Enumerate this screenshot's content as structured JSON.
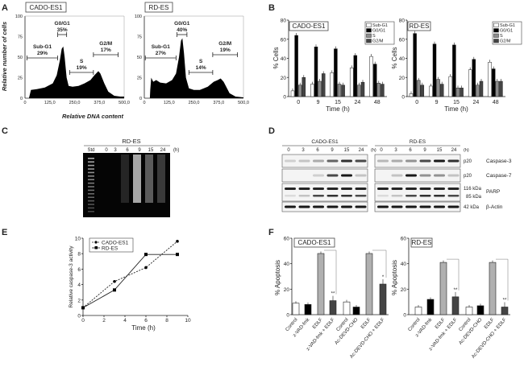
{
  "panels": {
    "A": "A",
    "B": "B",
    "C": "C",
    "D": "D",
    "E": "E",
    "F": "F"
  },
  "chart_data": [
    {
      "panel": "A",
      "type": "area",
      "ylabel": "Relative number of cells",
      "xlabel": "Relative DNA content",
      "xlim": [
        0,
        500
      ],
      "ylim": [
        0,
        100
      ],
      "xticks": [
        "0",
        "125,0",
        "250,0",
        "375,0",
        "500,0"
      ],
      "yticks": [
        "0",
        "25",
        "50",
        "75",
        "100"
      ],
      "plots": [
        {
          "title": "CADO-ES1",
          "x": [
            20,
            30,
            60,
            100,
            140,
            160,
            175,
            185,
            193,
            200,
            210,
            220,
            240,
            270,
            300,
            330,
            350,
            370,
            380,
            400,
            420,
            450,
            480,
            500
          ],
          "y": [
            0,
            10,
            11,
            13,
            18,
            28,
            45,
            60,
            63,
            50,
            25,
            15,
            14,
            15,
            18,
            22,
            28,
            33,
            30,
            18,
            8,
            3,
            2,
            2
          ],
          "gates": [
            {
              "label": "Sub-G1",
              "pct": "29%",
              "from": 10,
              "to": 165
            },
            {
              "label": "G0/G1",
              "pct": "35%",
              "from": 165,
              "to": 210
            },
            {
              "label": "S",
              "pct": "19%",
              "from": 225,
              "to": 345
            },
            {
              "label": "G2/M",
              "pct": "17%",
              "from": 345,
              "to": 470
            }
          ]
        },
        {
          "title": "RD-ES",
          "x": [
            28,
            30,
            35,
            45,
            60,
            80,
            110,
            140,
            160,
            175,
            185,
            192,
            200,
            210,
            225,
            250,
            280,
            320,
            350,
            370,
            385,
            400,
            430,
            460,
            500
          ],
          "y": [
            0,
            10,
            25,
            20,
            22,
            19,
            18,
            22,
            30,
            50,
            70,
            73,
            55,
            25,
            12,
            10,
            10,
            14,
            20,
            22,
            24,
            20,
            6,
            2,
            1
          ],
          "gates": [
            {
              "label": "Sub-G1",
              "pct": "27%",
              "from": 5,
              "to": 160
            },
            {
              "label": "G0/G1",
              "pct": "40%",
              "from": 165,
              "to": 215
            },
            {
              "label": "S",
              "pct": "14%",
              "from": 225,
              "to": 345
            },
            {
              "label": "G2/M",
              "pct": "19%",
              "from": 345,
              "to": 470
            }
          ]
        }
      ]
    },
    {
      "panel": "B",
      "type": "bar",
      "ylabel": "% Cells",
      "xlabel": "Time (h)",
      "ylim": [
        0,
        80
      ],
      "yticks": [
        "0",
        "20",
        "40",
        "60",
        "80"
      ],
      "categories": [
        "0",
        "9",
        "15",
        "24",
        "48"
      ],
      "legend": [
        "Sub-G1",
        "G0/G1",
        "S",
        "G2/M"
      ],
      "legend_placement": "top-right",
      "plots": [
        {
          "title": "CADO-ES1",
          "series": [
            {
              "name": "Sub-G1",
              "values": [
                6,
                13,
                25,
                30,
                42
              ]
            },
            {
              "name": "G0/G1",
              "values": [
                64,
                52,
                50,
                43,
                34
              ]
            },
            {
              "name": "S",
              "values": [
                12,
                16,
                13,
                12,
                14
              ]
            },
            {
              "name": "G2/M",
              "values": [
                20,
                24,
                12,
                15,
                13
              ]
            }
          ]
        },
        {
          "title": "RD-ES",
          "series": [
            {
              "name": "Sub-G1",
              "values": [
                3,
                11,
                21,
                28,
                36
              ]
            },
            {
              "name": "G0/G1",
              "values": [
                66,
                55,
                54,
                39,
                29
              ]
            },
            {
              "name": "S",
              "values": [
                17,
                18,
                9,
                12,
                16
              ]
            },
            {
              "name": "G2/M",
              "values": [
                12,
                13,
                9,
                16,
                16
              ]
            }
          ]
        }
      ]
    },
    {
      "panel": "E",
      "type": "line",
      "ylabel": "Relative caspase-3 activity",
      "xlabel": "Time (h)",
      "xlim": [
        0,
        10
      ],
      "ylim": [
        0,
        10
      ],
      "xticks": [
        "0",
        "2",
        "4",
        "6",
        "8",
        "10"
      ],
      "yticks": [
        "0",
        "2",
        "4",
        "6",
        "8",
        "10"
      ],
      "legend_placement": "top-left",
      "series": [
        {
          "name": "CADO-ES1",
          "x": [
            0,
            3,
            6,
            9
          ],
          "y": [
            1,
            4.4,
            6.2,
            9.6
          ]
        },
        {
          "name": "RD-ES",
          "x": [
            0,
            3,
            6,
            9
          ],
          "y": [
            1,
            3.3,
            7.9,
            7.9
          ]
        }
      ]
    },
    {
      "panel": "F",
      "type": "bar",
      "ylabel": "% Apoptosis",
      "ylim": [
        0,
        60
      ],
      "yticks": [
        "0",
        "20",
        "40",
        "60"
      ],
      "categories": [
        "Control",
        "z-VAD-fmk",
        "EDLF",
        "z-VAD-fmk + EDLF",
        "Control",
        "Ac-DEVD-CHO",
        "EDLF",
        "Ac-DEVD-CHO + EDLF"
      ],
      "plots": [
        {
          "title": "CADO-ES1",
          "values": [
            9,
            8,
            48,
            11,
            10,
            6,
            48,
            24
          ],
          "significance": [
            "",
            "",
            "",
            "**",
            "",
            "",
            "",
            "*"
          ]
        },
        {
          "title": "RD-ES",
          "values": [
            6,
            12,
            41,
            14,
            6,
            7,
            41,
            6
          ],
          "significance": [
            "",
            "",
            "",
            "**",
            "",
            "",
            "",
            "**"
          ]
        }
      ]
    }
  ],
  "gel": {
    "panel": "C",
    "title": "RD-ES",
    "lanes": [
      "Std",
      "0",
      "3",
      "6",
      "9",
      "15",
      "24"
    ],
    "unit": "(h)"
  },
  "blot": {
    "panel": "D",
    "groups": [
      "CADO-ES1",
      "RD-ES"
    ],
    "lanes": [
      "0",
      "3",
      "6",
      "9",
      "15",
      "24"
    ],
    "unit": "(h)",
    "rows": [
      {
        "name": "Caspase-3",
        "marker": "p20"
      },
      {
        "name": "Caspase-7",
        "marker": "p20"
      },
      {
        "name": "PARP",
        "marker": "116 kDa",
        "marker2": "85 kDa"
      },
      {
        "name": "β-Actin",
        "marker": "42 kDa"
      }
    ]
  },
  "colors": {
    "subg1": "#ffffff",
    "g0g1": "#000000",
    "s": "#8c8c8c",
    "g2m": "#444444",
    "edlf": "#b0b0b0"
  }
}
